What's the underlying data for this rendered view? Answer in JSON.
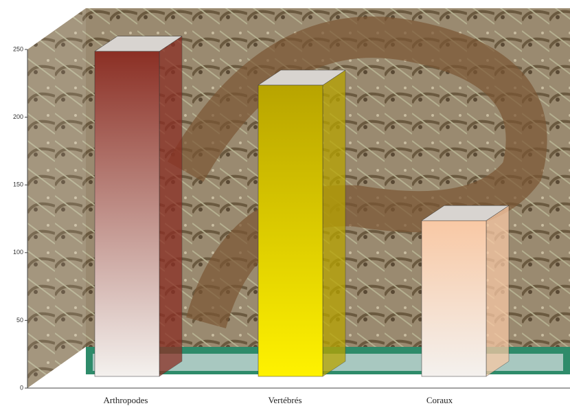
{
  "chart_data": {
    "type": "bar3d",
    "categories": [
      "Arthropodes",
      "Vertébrés",
      "Coraux"
    ],
    "values": [
      240,
      215,
      115
    ],
    "colors": [
      [
        "#8b2f24",
        "#f4f1ee"
      ],
      [
        "#b8a400",
        "#fff200"
      ],
      [
        "#f8c8a4",
        "#f4f1ee"
      ]
    ],
    "ylim": [
      0,
      250
    ],
    "yticks": [
      0,
      50,
      100,
      150,
      200,
      250
    ]
  }
}
